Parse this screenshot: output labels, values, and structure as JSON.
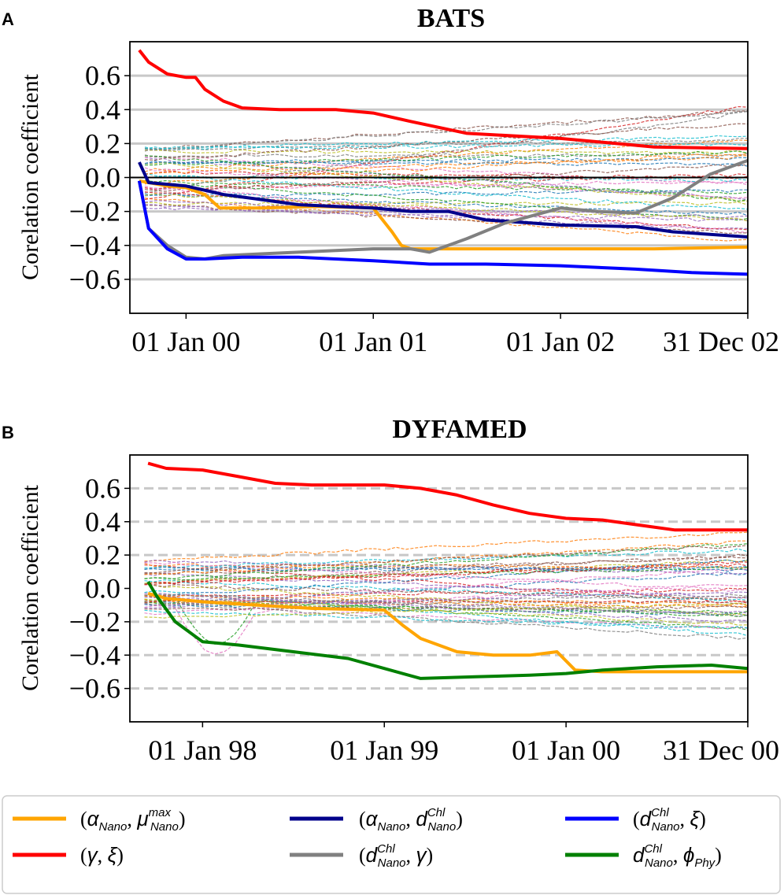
{
  "panels": [
    {
      "letter": "A",
      "title": "BATS",
      "grid_style": "solid",
      "ylabel": "Corelation coefficient",
      "ylim": [
        -0.8,
        0.8
      ],
      "xlim": [
        -0.3,
        3.0
      ],
      "yticks": [
        0.6,
        0.4,
        0.2,
        0.0,
        -0.2,
        -0.4,
        -0.6
      ],
      "ytick_labels": [
        "0.6",
        "0.4",
        "0.2",
        "0.0",
        "−0.2",
        "−0.4",
        "−0.6"
      ],
      "xticks": [
        0.0,
        1.0,
        2.0,
        3.0
      ],
      "xtick_labels": [
        "01 Jan 00",
        "01 Jan 01",
        "01 Jan 02",
        "31 Dec 02"
      ],
      "highlight": [
        {
          "key": "alpha_mu",
          "color": "#FFA500",
          "x": [
            -0.25,
            -0.1,
            0.0,
            0.1,
            0.18,
            0.4,
            0.7,
            1.0,
            1.1,
            1.15,
            1.2,
            1.5,
            2.0,
            2.5,
            3.0
          ],
          "y": [
            -0.02,
            -0.05,
            -0.06,
            -0.1,
            -0.18,
            -0.18,
            -0.17,
            -0.18,
            -0.32,
            -0.4,
            -0.42,
            -0.42,
            -0.42,
            -0.42,
            -0.41
          ]
        },
        {
          "key": "gamma_xi",
          "color": "#FF0000",
          "x": [
            -0.25,
            -0.2,
            -0.1,
            0.0,
            0.05,
            0.1,
            0.2,
            0.3,
            0.5,
            0.8,
            1.0,
            1.2,
            1.5,
            2.0,
            2.5,
            3.0
          ],
          "y": [
            0.75,
            0.68,
            0.61,
            0.59,
            0.59,
            0.52,
            0.45,
            0.41,
            0.4,
            0.4,
            0.38,
            0.33,
            0.26,
            0.23,
            0.18,
            0.17
          ]
        },
        {
          "key": "alpha_dchl",
          "color": "#00008B",
          "x": [
            -0.25,
            -0.2,
            0.0,
            0.2,
            0.4,
            0.6,
            0.8,
            1.0,
            1.2,
            1.4,
            1.6,
            2.0,
            2.4,
            2.6,
            3.0
          ],
          "y": [
            0.09,
            -0.03,
            -0.05,
            -0.1,
            -0.13,
            -0.16,
            -0.17,
            -0.18,
            -0.2,
            -0.2,
            -0.25,
            -0.28,
            -0.29,
            -0.32,
            -0.35
          ]
        },
        {
          "key": "dchl_gamma",
          "color": "#808080",
          "x": [
            -0.25,
            -0.2,
            -0.1,
            0.0,
            0.1,
            0.2,
            0.4,
            0.6,
            0.8,
            1.0,
            1.2,
            1.3,
            1.5,
            1.7,
            2.0,
            2.2,
            2.4,
            2.6,
            2.8,
            3.0
          ],
          "y": [
            -0.02,
            -0.3,
            -0.4,
            -0.47,
            -0.48,
            -0.46,
            -0.45,
            -0.44,
            -0.43,
            -0.42,
            -0.42,
            -0.44,
            -0.36,
            -0.27,
            -0.18,
            -0.2,
            -0.21,
            -0.12,
            0.02,
            0.1
          ]
        },
        {
          "key": "dchl_xi",
          "color": "#0000FF",
          "x": [
            -0.25,
            -0.2,
            -0.1,
            0.0,
            0.1,
            0.3,
            0.6,
            1.0,
            1.3,
            1.6,
            2.0,
            2.4,
            2.7,
            3.0
          ],
          "y": [
            -0.02,
            -0.3,
            -0.42,
            -0.48,
            -0.48,
            -0.47,
            -0.47,
            -0.49,
            -0.51,
            -0.51,
            -0.52,
            -0.54,
            -0.56,
            -0.57
          ]
        }
      ]
    },
    {
      "letter": "B",
      "title": "DYFAMED",
      "grid_style": "dashed",
      "ylabel": "Corelation coefficient",
      "ylim": [
        -0.8,
        0.8
      ],
      "xlim": [
        -0.4,
        3.0
      ],
      "yticks": [
        0.6,
        0.4,
        0.2,
        0.0,
        -0.2,
        -0.4,
        -0.6
      ],
      "ytick_labels": [
        "0.6",
        "0.4",
        "0.2",
        "0.0",
        "−0.2",
        "−0.4",
        "−0.6"
      ],
      "xticks": [
        0.0,
        1.0,
        2.0,
        3.0
      ],
      "xtick_labels": [
        "01 Jan 98",
        "01 Jan 99",
        "01 Jan 00",
        "31 Dec 00"
      ],
      "highlight": [
        {
          "key": "alpha_mu",
          "color": "#FFA500",
          "x": [
            -0.3,
            -0.2,
            0.0,
            0.3,
            0.6,
            1.0,
            1.1,
            1.2,
            1.4,
            1.6,
            1.8,
            1.95,
            2.05,
            2.2,
            2.5,
            3.0
          ],
          "y": [
            -0.03,
            -0.06,
            -0.08,
            -0.1,
            -0.12,
            -0.13,
            -0.22,
            -0.3,
            -0.38,
            -0.4,
            -0.4,
            -0.38,
            -0.49,
            -0.5,
            -0.5,
            -0.5
          ]
        },
        {
          "key": "gamma_xi",
          "color": "#FF0000",
          "x": [
            -0.3,
            -0.2,
            0.0,
            0.2,
            0.4,
            0.6,
            1.0,
            1.2,
            1.4,
            1.6,
            1.8,
            2.0,
            2.2,
            2.4,
            2.6,
            3.0
          ],
          "y": [
            0.75,
            0.72,
            0.71,
            0.67,
            0.63,
            0.62,
            0.62,
            0.6,
            0.56,
            0.5,
            0.45,
            0.42,
            0.41,
            0.38,
            0.35,
            0.35
          ]
        },
        {
          "key": "dchl_phy",
          "color": "#008000",
          "x": [
            -0.3,
            -0.25,
            -0.15,
            0.0,
            0.2,
            0.5,
            0.8,
            1.0,
            1.2,
            1.5,
            1.8,
            2.0,
            2.2,
            2.5,
            2.8,
            3.0
          ],
          "y": [
            0.04,
            -0.05,
            -0.2,
            -0.32,
            -0.34,
            -0.38,
            -0.42,
            -0.48,
            -0.54,
            -0.53,
            -0.52,
            -0.51,
            -0.49,
            -0.47,
            -0.46,
            -0.48
          ]
        }
      ]
    }
  ],
  "legend": {
    "entries": [
      {
        "key": "alpha_mu",
        "color": "#FFA500",
        "label": "(αNano, μNanomax)"
      },
      {
        "key": "alpha_dchl",
        "color": "#00008B",
        "label": "(αNano, dNanoChl)"
      },
      {
        "key": "dchl_xi",
        "color": "#0000FF",
        "label": "(dNanoChl, ξ)"
      },
      {
        "key": "gamma_xi",
        "color": "#FF0000",
        "label": "(γ, ξ)"
      },
      {
        "key": "dchl_gamma",
        "color": "#808080",
        "label": "(dNanoChl, γ)"
      },
      {
        "key": "dchl_phy",
        "color": "#008000",
        "label": "dNanoChl, ϕPhy)"
      }
    ]
  },
  "chart_data": [
    {
      "type": "line",
      "title": "BATS",
      "xlabel": "",
      "ylabel": "Corelation coefficient",
      "ylim": [
        -0.8,
        0.8
      ],
      "x_tick_labels": [
        "01 Jan 00",
        "01 Jan 01",
        "01 Jan 02",
        "31 Dec 02"
      ],
      "series": [
        {
          "name": "(αNano, μNanomax)",
          "color": "#FFA500",
          "y_start": -0.02,
          "y_end": -0.41
        },
        {
          "name": "(γ, ξ)",
          "color": "#FF0000",
          "y_start": 0.75,
          "y_end": 0.17
        },
        {
          "name": "(αNano, dNanoChl)",
          "color": "#00008B",
          "y_start": 0.09,
          "y_end": -0.35
        },
        {
          "name": "(dNanoChl, γ)",
          "color": "#808080",
          "y_start": -0.02,
          "y_end": 0.1
        },
        {
          "name": "(dNanoChl, ξ)",
          "color": "#0000FF",
          "y_start": -0.02,
          "y_end": -0.57
        }
      ],
      "background": "many thin dashed coloured series between about -0.25 and 0.42"
    },
    {
      "type": "line",
      "title": "DYFAMED",
      "xlabel": "",
      "ylabel": "Corelation coefficient",
      "ylim": [
        -0.8,
        0.8
      ],
      "x_tick_labels": [
        "01 Jan 98",
        "01 Jan 99",
        "01 Jan 00",
        "31 Dec 00"
      ],
      "series": [
        {
          "name": "(αNano, μNanomax)",
          "color": "#FFA500",
          "y_start": -0.03,
          "y_end": -0.5
        },
        {
          "name": "(γ, ξ)",
          "color": "#FF0000",
          "y_start": 0.75,
          "y_end": 0.35
        },
        {
          "name": "dNanoChl, ϕPhy)",
          "color": "#008000",
          "y_start": 0.04,
          "y_end": -0.48
        }
      ],
      "background": "many thin dashed coloured series between about -0.4 and 0.22"
    }
  ]
}
